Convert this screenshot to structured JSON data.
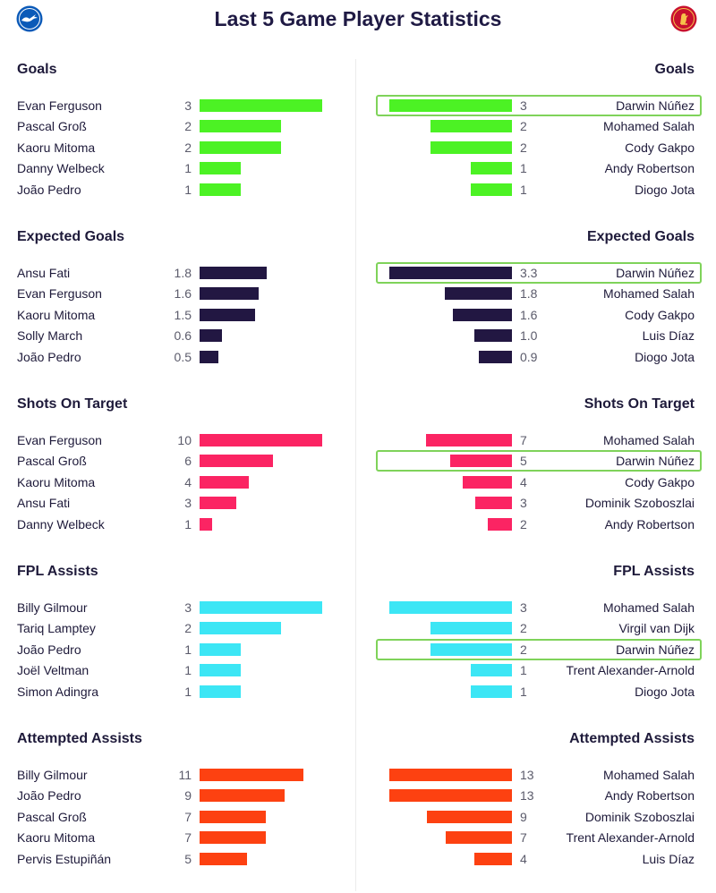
{
  "title": "Last 5 Game Player Statistics",
  "logos": {
    "left": "seagull-crest-icon",
    "right": "liverbird-crest-icon"
  },
  "chart_data": [
    {
      "type": "bar",
      "title": "Goals",
      "color": "#4cf224",
      "max": 3,
      "left": [
        {
          "name": "Evan Ferguson",
          "value": "3"
        },
        {
          "name": "Pascal Groß",
          "value": "2"
        },
        {
          "name": "Kaoru Mitoma",
          "value": "2"
        },
        {
          "name": "Danny Welbeck",
          "value": "1"
        },
        {
          "name": "João Pedro",
          "value": "1"
        }
      ],
      "right": [
        {
          "name": "Darwin Núñez",
          "value": "3",
          "highlight": true
        },
        {
          "name": "Mohamed Salah",
          "value": "2"
        },
        {
          "name": "Cody Gakpo",
          "value": "2"
        },
        {
          "name": "Andy Robertson",
          "value": "1"
        },
        {
          "name": "Diogo Jota",
          "value": "1"
        }
      ]
    },
    {
      "type": "bar",
      "title": "Expected Goals",
      "color": "#221742",
      "max": 3.3,
      "left": [
        {
          "name": "Ansu Fati",
          "value": "1.8"
        },
        {
          "name": "Evan Ferguson",
          "value": "1.6"
        },
        {
          "name": "Kaoru Mitoma",
          "value": "1.5"
        },
        {
          "name": "Solly March",
          "value": "0.6"
        },
        {
          "name": "João Pedro",
          "value": "0.5"
        }
      ],
      "right": [
        {
          "name": "Darwin Núñez",
          "value": "3.3",
          "highlight": true
        },
        {
          "name": "Mohamed Salah",
          "value": "1.8"
        },
        {
          "name": "Cody Gakpo",
          "value": "1.6"
        },
        {
          "name": "Luis Díaz",
          "value": "1.0"
        },
        {
          "name": "Diogo Jota",
          "value": "0.9"
        }
      ]
    },
    {
      "type": "bar",
      "title": "Shots On Target",
      "color": "#fb2463",
      "max": 10,
      "left": [
        {
          "name": "Evan Ferguson",
          "value": "10"
        },
        {
          "name": "Pascal Groß",
          "value": "6"
        },
        {
          "name": "Kaoru Mitoma",
          "value": "4"
        },
        {
          "name": "Ansu Fati",
          "value": "3"
        },
        {
          "name": "Danny Welbeck",
          "value": "1"
        }
      ],
      "right": [
        {
          "name": "Mohamed Salah",
          "value": "7"
        },
        {
          "name": "Darwin Núñez",
          "value": "5",
          "highlight": true
        },
        {
          "name": "Cody Gakpo",
          "value": "4"
        },
        {
          "name": "Dominik Szoboszlai",
          "value": "3"
        },
        {
          "name": "Andy Robertson",
          "value": "2"
        }
      ]
    },
    {
      "type": "bar",
      "title": "FPL Assists",
      "color": "#3ce6f5",
      "max": 3,
      "left": [
        {
          "name": "Billy Gilmour",
          "value": "3"
        },
        {
          "name": "Tariq Lamptey",
          "value": "2"
        },
        {
          "name": "João Pedro",
          "value": "1"
        },
        {
          "name": "Joël Veltman",
          "value": "1"
        },
        {
          "name": "Simon Adingra",
          "value": "1"
        }
      ],
      "right": [
        {
          "name": "Mohamed Salah",
          "value": "3"
        },
        {
          "name": "Virgil van Dijk",
          "value": "2"
        },
        {
          "name": "Darwin Núñez",
          "value": "2",
          "highlight": true
        },
        {
          "name": "Trent Alexander-Arnold",
          "value": "1"
        },
        {
          "name": "Diogo Jota",
          "value": "1"
        }
      ]
    },
    {
      "type": "bar",
      "title": "Attempted Assists",
      "color": "#fd4111",
      "max": 13,
      "left": [
        {
          "name": "Billy Gilmour",
          "value": "11"
        },
        {
          "name": "João Pedro",
          "value": "9"
        },
        {
          "name": "Pascal Groß",
          "value": "7"
        },
        {
          "name": "Kaoru Mitoma",
          "value": "7"
        },
        {
          "name": "Pervis Estupiñán",
          "value": "5"
        }
      ],
      "right": [
        {
          "name": "Mohamed Salah",
          "value": "13"
        },
        {
          "name": "Andy Robertson",
          "value": "13"
        },
        {
          "name": "Dominik Szoboszlai",
          "value": "9"
        },
        {
          "name": "Trent Alexander-Arnold",
          "value": "7"
        },
        {
          "name": "Luis Díaz",
          "value": "4"
        }
      ]
    }
  ]
}
